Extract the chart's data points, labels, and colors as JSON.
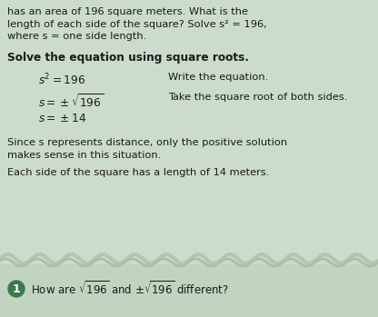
{
  "bg_color_main": "#ccdccc",
  "bg_color_footer": "#c0d4c0",
  "number_badge_color": "#4a8a5a",
  "text_color": "#1a1a1a",
  "header_line1": "has an area of 196 square meters. What is the",
  "header_line2": "length of each side of the square? Solve s² = 196,",
  "header_line3": "where s = one side length.",
  "subheader": "Solve the equation using square roots.",
  "eq1_left": "$s^2 = 196$",
  "eq1_right": "Write the equation.",
  "eq2_left": "$s = \\pm\\sqrt{196}$",
  "eq2_right": "Take the square root of both sides.",
  "eq3_left": "$s = \\pm14$",
  "body1_line1": "Since s represents distance, only the positive solution",
  "body1_line2": "makes sense in this situation.",
  "body2": "Each side of the square has a length of 14 meters.",
  "footer_num": "1",
  "footer_q1": "How are ",
  "footer_q2": " and ",
  "footer_q3": " different?",
  "wavy_color": "#aabcaa",
  "footer_badge_color": "#3a7a4a"
}
